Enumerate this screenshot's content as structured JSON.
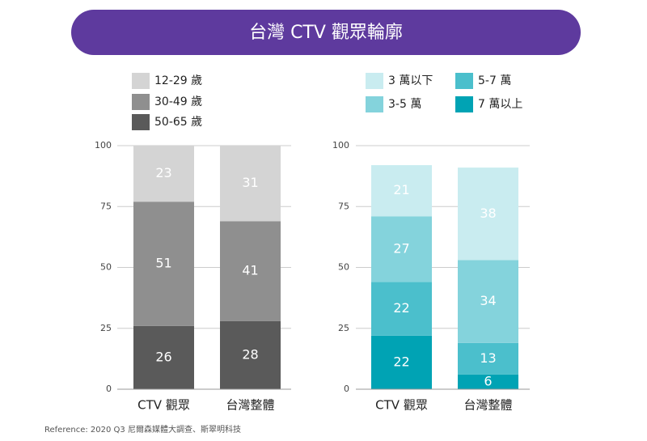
{
  "header": {
    "title": "台灣 CTV 觀眾輪廓"
  },
  "chart_data": [
    {
      "type": "stacked_bar",
      "categories": [
        "CTV 觀眾",
        "台灣整體"
      ],
      "series": [
        {
          "name": "12-29 歲",
          "color": "#d4d4d4",
          "values": [
            23,
            31
          ]
        },
        {
          "name": "30-49 歲",
          "color": "#8f8f8f",
          "values": [
            51,
            41
          ]
        },
        {
          "name": "50-65 歲",
          "color": "#5a5a5a",
          "values": [
            26,
            28
          ]
        }
      ],
      "ylim": [
        0,
        100
      ],
      "yticks": [
        0,
        25,
        50,
        75,
        100
      ],
      "grid": true
    },
    {
      "type": "stacked_bar",
      "categories": [
        "CTV 觀眾",
        "台灣整體"
      ],
      "series": [
        {
          "name": "3 萬以下",
          "color": "#c9ecf0",
          "values": [
            21,
            38
          ]
        },
        {
          "name": "5-7 萬",
          "color": "#4bbfcc",
          "values": [
            22,
            13
          ]
        },
        {
          "name": "3-5 萬",
          "color": "#84d3dc",
          "values": [
            27,
            34
          ]
        },
        {
          "name": "7 萬以上",
          "color": "#00a3b4",
          "values": [
            22,
            6
          ]
        }
      ],
      "stack_order": [
        "7 萬以上",
        "5-7 萬",
        "3-5 萬",
        "3 萬以下"
      ],
      "ylim": [
        0,
        100
      ],
      "yticks": [
        0,
        25,
        50,
        75,
        100
      ],
      "grid": true
    }
  ],
  "footer": {
    "reference": "Reference: 2020 Q3 尼爾森媒體大調查、斯翠明科技"
  }
}
